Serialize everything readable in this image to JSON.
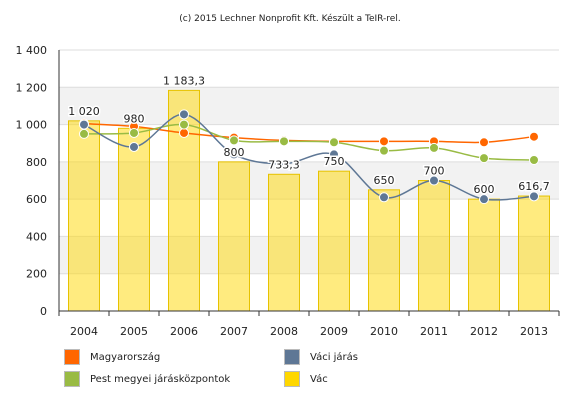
{
  "credit": "(c) 2015 Lechner Nonprofit Kft. Készült a TeIR-rel.",
  "chart_data": {
    "type": "bar",
    "categories": [
      "2004",
      "2005",
      "2006",
      "2007",
      "2008",
      "2009",
      "2010",
      "2011",
      "2012",
      "2013"
    ],
    "ylim": [
      0,
      1400
    ],
    "yticks": [
      0,
      200,
      400,
      600,
      800,
      1000,
      1200,
      1400
    ],
    "ytick_labels": [
      "0",
      "200",
      "400",
      "600",
      "800",
      "1 000",
      "1 200",
      "1 400"
    ],
    "grid": true,
    "legend_position": "bottom",
    "bar_series": {
      "name": "Vác",
      "color": "#ffd700",
      "values": [
        1020,
        980,
        1183.3,
        800,
        733.3,
        750,
        650,
        700,
        600,
        616.7
      ],
      "labels": [
        "1 020",
        "980",
        "1 183,3",
        "800",
        "733,3",
        "750",
        "650",
        "700",
        "600",
        "616,7"
      ]
    },
    "line_series": [
      {
        "name": "Magyarország",
        "color": "#ff6600",
        "values": [
          1005,
          990,
          955,
          930,
          915,
          910,
          910,
          910,
          905,
          935
        ]
      },
      {
        "name": "Pest megyei járásközpontok",
        "color": "#99bb44",
        "values": [
          950,
          955,
          1000,
          915,
          910,
          905,
          860,
          875,
          820,
          810
        ]
      },
      {
        "name": "Váci járás",
        "color": "#5e7795",
        "values": [
          1000,
          880,
          1055,
          840,
          790,
          840,
          610,
          700,
          600,
          615
        ]
      }
    ]
  },
  "legend": [
    {
      "label": "Magyarország",
      "color": "#ff6600"
    },
    {
      "label": "Váci járás",
      "color": "#5e7795"
    },
    {
      "label": "Pest megyei járásközpontok",
      "color": "#99bb44"
    },
    {
      "label": "Vác",
      "color": "#ffd700"
    }
  ]
}
